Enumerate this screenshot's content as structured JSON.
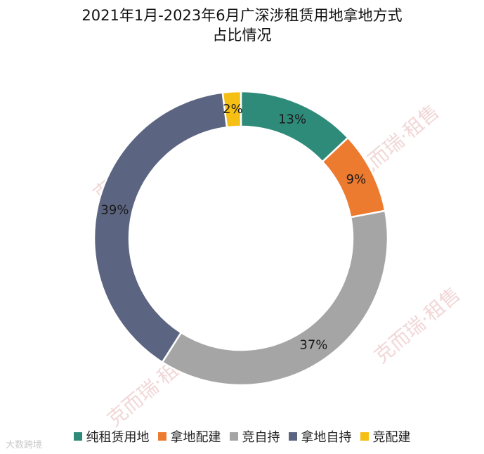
{
  "title": {
    "line1": "2021年1月-2023年6月广深涉租赁用地拿地方式",
    "line2": "占比情况"
  },
  "watermark_text": "克而瑞·租售",
  "watermark_bottom_left": "大数跨境",
  "chart_data": {
    "type": "pie",
    "style": "donut",
    "start_direction": "top",
    "direction": "clockwise",
    "legend_position": "bottom",
    "categories": [
      "纯租赁用地",
      "拿地配建",
      "竞自持",
      "拿地自持",
      "竞配建"
    ],
    "values": [
      13,
      9,
      37,
      39,
      2
    ],
    "labels": [
      "13%",
      "9%",
      "37%",
      "39%",
      "2%"
    ],
    "colors": [
      "#2e8b7a",
      "#ec7a2f",
      "#a5a5a5",
      "#5b6480",
      "#f5bf13"
    ]
  }
}
